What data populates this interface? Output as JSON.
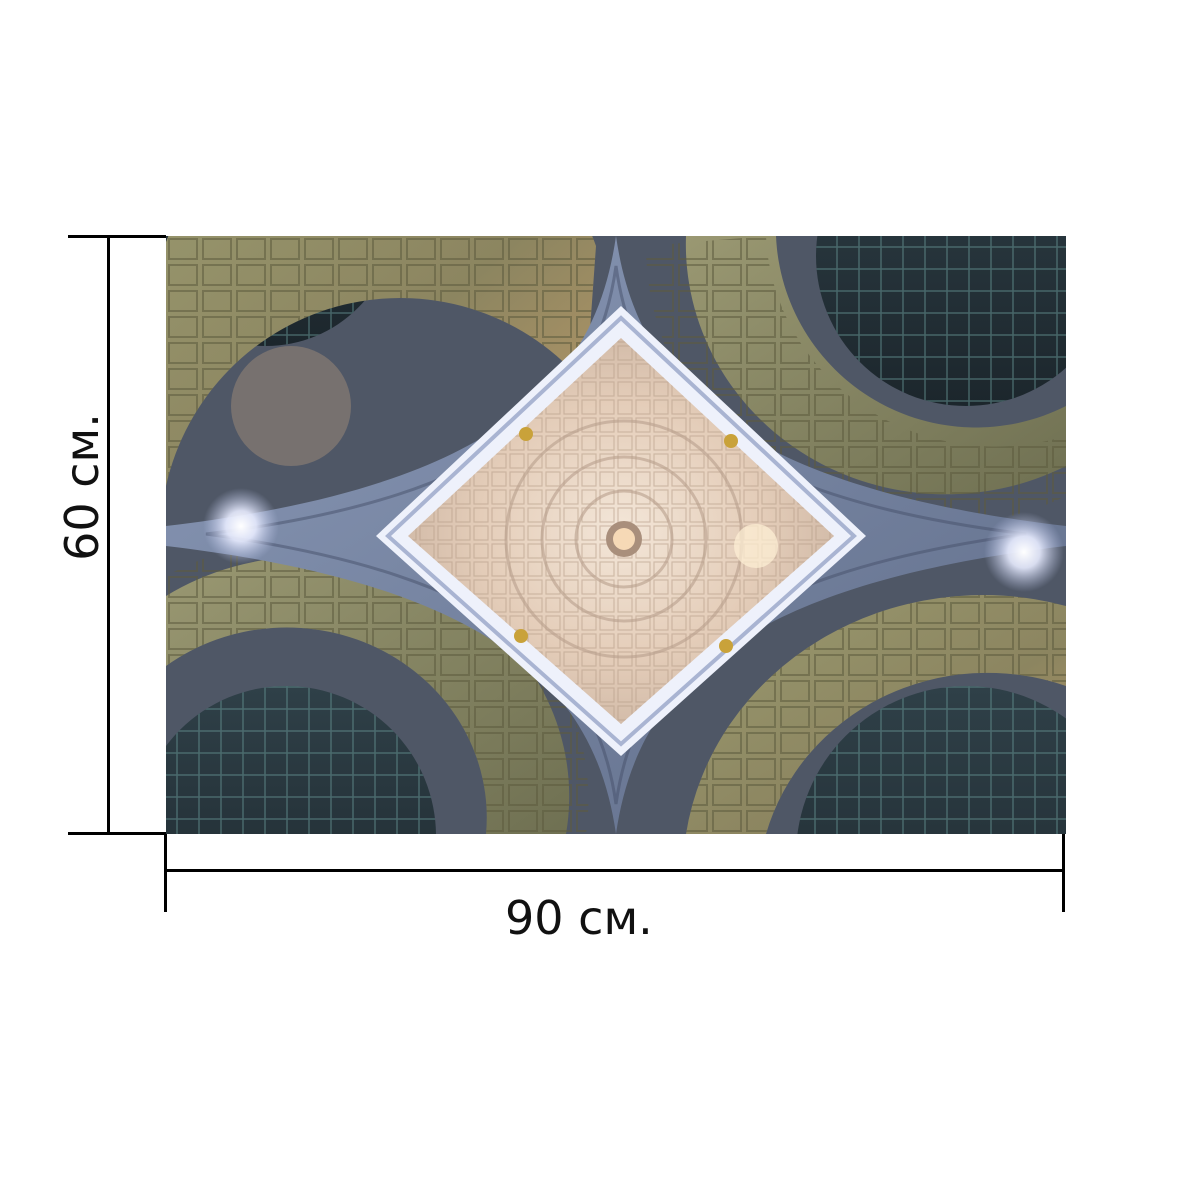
{
  "product": {
    "image_subject": "ceiling-dome-photo"
  },
  "dimensions": {
    "width_label": "90 см.",
    "height_label": "60 см."
  },
  "colors": {
    "background": "#ffffff",
    "dimension_lines": "#000000",
    "vault_olive": "#8a8a5c",
    "stone_blue": "#7f8fb0",
    "dome_cream": "#e9d8c8"
  }
}
